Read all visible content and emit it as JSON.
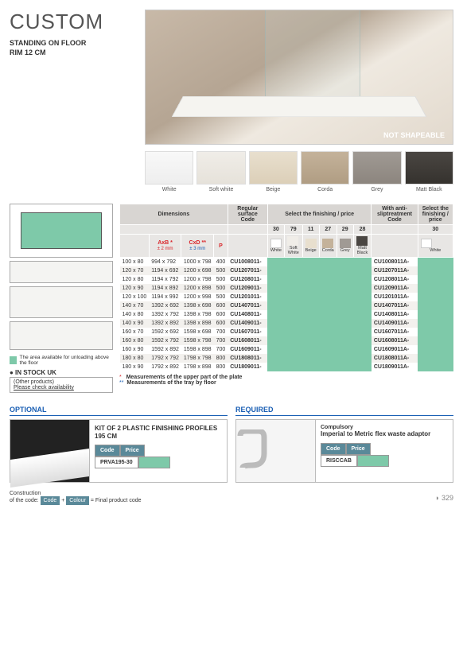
{
  "header": {
    "title": "CUSTOM",
    "subtitle1": "STANDING ON FLOOR",
    "subtitle2": "RIM 12 CM",
    "badge": "NOT SHAPEABLE"
  },
  "swatches": [
    {
      "label": "White",
      "cls": "sw-white"
    },
    {
      "label": "Soft white",
      "cls": "sw-soft"
    },
    {
      "label": "Beige",
      "cls": "sw-beige"
    },
    {
      "label": "Corda",
      "cls": "sw-corda"
    },
    {
      "label": "Grey",
      "cls": "sw-grey"
    },
    {
      "label": "Matt Black",
      "cls": "sw-black"
    }
  ],
  "legend": {
    "area": "The area available for unloading above the floor",
    "stock_title": "● IN STOCK UK",
    "stock_other": "(Other products)",
    "stock_check": "Please check availability"
  },
  "table": {
    "groups": {
      "dim": "Dimensions",
      "reg": "Regular surface Code",
      "sel": "Select the finishing / price",
      "anti": "With anti-sliptreatment Code",
      "sel2": "Select the finishing / price"
    },
    "sub": {
      "axb": "AxB *",
      "axb2": "± 2 mm",
      "cxd": "CxD **",
      "cxd2": "± 3 mm",
      "p": "P"
    },
    "finishCodes": [
      "30",
      "79",
      "11",
      "27",
      "29",
      "28"
    ],
    "finishNames": [
      "White",
      "Soft White",
      "Beige",
      "Corda",
      "Grey",
      "Matt Black"
    ],
    "finish2Code": "30",
    "finish2Name": "White",
    "rows": [
      {
        "ab": "100 x 80",
        "cd": "994 x 792",
        "ef": "1000 x 798",
        "p": "400",
        "code": "CU1008011-",
        "code2": "CU1008011A-"
      },
      {
        "ab": "120 x 70",
        "cd": "1194 x 692",
        "ef": "1200 x 698",
        "p": "500",
        "code": "CU1207011-",
        "code2": "CU1207011A-"
      },
      {
        "ab": "120 x 80",
        "cd": "1194 x 792",
        "ef": "1200 x 798",
        "p": "500",
        "code": "CU1208011-",
        "code2": "CU1208011A-"
      },
      {
        "ab": "120 x 90",
        "cd": "1194 x 892",
        "ef": "1200 x 898",
        "p": "500",
        "code": "CU1209011-",
        "code2": "CU1209011A-"
      },
      {
        "ab": "120 x 100",
        "cd": "1194 x 992",
        "ef": "1200 x 998",
        "p": "500",
        "code": "CU1201011-",
        "code2": "CU1201011A-"
      },
      {
        "ab": "140 x 70",
        "cd": "1392 x 692",
        "ef": "1398 x 698",
        "p": "600",
        "code": "CU1407011-",
        "code2": "CU1407011A-"
      },
      {
        "ab": "140 x 80",
        "cd": "1392 x 792",
        "ef": "1398 x 798",
        "p": "600",
        "code": "CU1408011-",
        "code2": "CU1408011A-"
      },
      {
        "ab": "140 x 90",
        "cd": "1392 x 892",
        "ef": "1398 x 898",
        "p": "600",
        "code": "CU1409011-",
        "code2": "CU1409011A-"
      },
      {
        "ab": "160 x 70",
        "cd": "1592 x 692",
        "ef": "1598 x 698",
        "p": "700",
        "code": "CU1607011-",
        "code2": "CU1607011A-"
      },
      {
        "ab": "160 x 80",
        "cd": "1592 x 792",
        "ef": "1598 x 798",
        "p": "700",
        "code": "CU1608011-",
        "code2": "CU1608011A-"
      },
      {
        "ab": "160 x 90",
        "cd": "1592 x 892",
        "ef": "1598 x 898",
        "p": "700",
        "code": "CU1609011-",
        "code2": "CU1609011A-"
      },
      {
        "ab": "180 x 80",
        "cd": "1792 x 792",
        "ef": "1798 x 798",
        "p": "800",
        "code": "CU1808011-",
        "code2": "CU1808011A-"
      },
      {
        "ab": "180 x 90",
        "cd": "1792 x 892",
        "ef": "1798 x 898",
        "p": "800",
        "code": "CU1809011-",
        "code2": "CU1809011A-"
      }
    ],
    "foot1": "Measurements of the upper part of the plate",
    "foot2": "Measurements of the tray by floor"
  },
  "optional": {
    "title": "OPTIONAL",
    "name": "KIT OF 2 PLASTIC FINISHING PROFILES 195 CM",
    "codeLabel": "Code",
    "priceLabel": "Price",
    "code": "PRVA195-30"
  },
  "required": {
    "title": "REQUIRED",
    "pre": "Compulsory",
    "name": "Imperial to Metric flex waste adaptor",
    "codeLabel": "Code",
    "priceLabel": "Price",
    "code": "RISCCAB"
  },
  "footer": {
    "cons1": "Construction",
    "cons2": "of the code:",
    "code": "Code",
    "plus": "+",
    "colour": "Colour",
    "eq": "=",
    "final1": "Final product",
    "final2": "code",
    "page": "329"
  }
}
